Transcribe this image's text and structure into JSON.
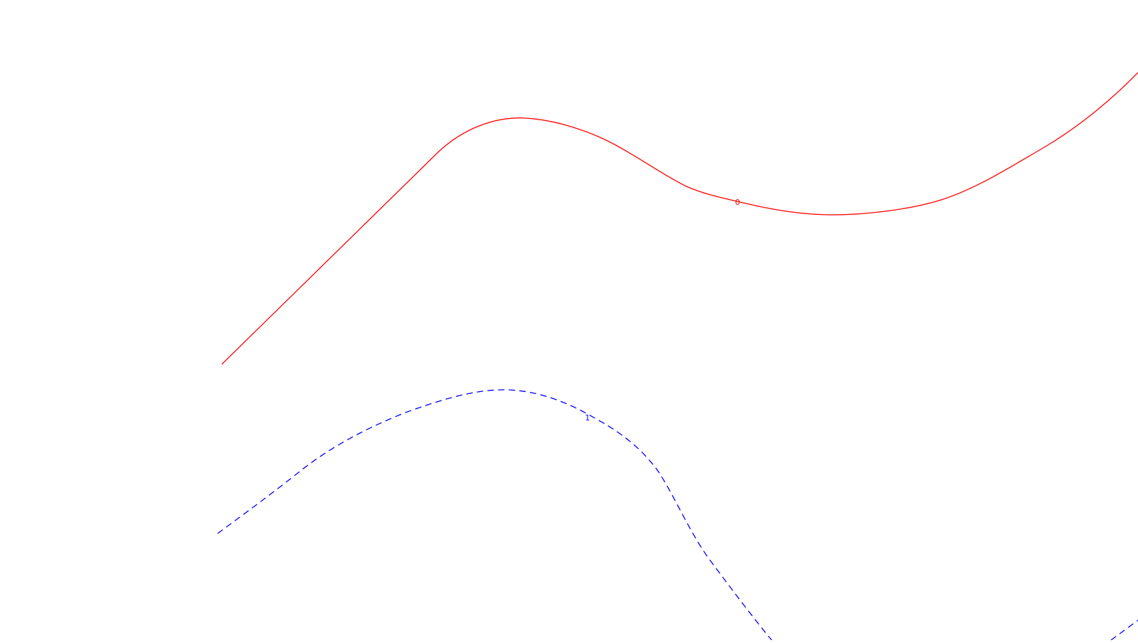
{
  "background_color": "#ffffff",
  "curves": [
    {
      "id": "curve-0",
      "label": "0",
      "color": "#ff0000",
      "line_style": "solid"
    },
    {
      "id": "curve-1",
      "label": "1",
      "color": "#0000ff",
      "line_style": "dashed"
    }
  ]
}
